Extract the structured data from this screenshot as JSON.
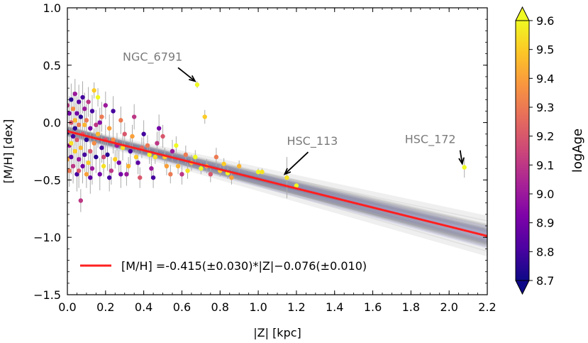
{
  "chart_data": {
    "type": "scatter",
    "xlabel": "|Z| [kpc]",
    "ylabel": "[M/H] [dex]",
    "xlim": [
      0.0,
      2.2
    ],
    "ylim": [
      -1.5,
      1.0
    ],
    "xticks": [
      0.0,
      0.2,
      0.4,
      0.6,
      0.8,
      1.0,
      1.2,
      1.4,
      1.6,
      1.8,
      2.0,
      2.2
    ],
    "xtick_labels": [
      "0.0",
      "0.2",
      "0.4",
      "0.6",
      "0.8",
      "1.0",
      "1.2",
      "1.4",
      "1.6",
      "1.8",
      "2.0",
      "2.2"
    ],
    "yticks": [
      -1.5,
      -1.0,
      -0.5,
      0.0,
      0.5,
      1.0
    ],
    "ytick_labels": [
      "−1.5",
      "−1.0",
      "−0.5",
      "0.0",
      "0.5",
      "1.0"
    ],
    "fit": {
      "slope": -0.415,
      "slope_err": 0.03,
      "intercept": -0.076,
      "intercept_err": 0.01,
      "color": "#ff2020",
      "legend_label": "[M/H] =-0.415(±0.030)*|Z|−0.076(±0.010)"
    },
    "colorbar": {
      "label": "logAge",
      "range": [
        8.7,
        9.6
      ],
      "ticks": [
        8.7,
        8.8,
        8.9,
        9.0,
        9.1,
        9.2,
        9.3,
        9.4,
        9.5,
        9.6
      ],
      "tick_labels": [
        "8.7",
        "8.8",
        "8.9",
        "9.0",
        "9.1",
        "9.2",
        "9.3",
        "9.4",
        "9.5",
        "9.6"
      ],
      "colormap": "plasma"
    },
    "annotations": [
      {
        "text": "NGC_6791",
        "x": 0.68,
        "y": 0.33
      },
      {
        "text": "HSC_113",
        "x": 1.15,
        "y": -0.48
      },
      {
        "text": "HSC_172",
        "x": 2.08,
        "y": -0.39
      }
    ],
    "points": [
      {
        "x": 0.68,
        "y": 0.33,
        "age": 9.6,
        "err": 0.03
      },
      {
        "x": 1.15,
        "y": -0.48,
        "age": 9.55,
        "err": 0.18
      },
      {
        "x": 1.2,
        "y": -0.55,
        "age": 9.6,
        "err": 0.03
      },
      {
        "x": 2.08,
        "y": -0.39,
        "age": 9.6,
        "err": 0.09
      },
      {
        "x": 0.72,
        "y": 0.05,
        "age": 9.5,
        "err": 0.06
      },
      {
        "x": 1.0,
        "y": -0.43,
        "age": 9.6,
        "err": 0.03
      },
      {
        "x": 1.02,
        "y": -0.43,
        "age": 9.55,
        "err": 0.03
      },
      {
        "x": 0.9,
        "y": -0.38,
        "age": 9.45,
        "err": 0.05
      },
      {
        "x": 0.86,
        "y": -0.48,
        "age": 9.4,
        "err": 0.06
      },
      {
        "x": 0.78,
        "y": -0.3,
        "age": 9.3,
        "err": 0.08
      },
      {
        "x": 0.8,
        "y": -0.42,
        "age": 9.5,
        "err": 0.05
      },
      {
        "x": 0.82,
        "y": -0.36,
        "age": 9.5,
        "err": 0.05
      },
      {
        "x": 0.75,
        "y": -0.45,
        "age": 9.2,
        "err": 0.07
      },
      {
        "x": 0.7,
        "y": -0.4,
        "age": 9.6,
        "err": 0.05
      },
      {
        "x": 0.65,
        "y": -0.35,
        "age": 9.45,
        "err": 0.07
      },
      {
        "x": 0.62,
        "y": -0.28,
        "age": 9.3,
        "err": 0.08
      },
      {
        "x": 0.6,
        "y": -0.45,
        "age": 9.1,
        "err": 0.09
      },
      {
        "x": 0.55,
        "y": -0.25,
        "age": 9.0,
        "err": 0.1
      },
      {
        "x": 0.52,
        "y": -0.38,
        "age": 9.4,
        "err": 0.08
      },
      {
        "x": 0.5,
        "y": -0.12,
        "age": 9.2,
        "err": 0.1
      },
      {
        "x": 0.48,
        "y": -0.05,
        "age": 8.9,
        "err": 0.12
      },
      {
        "x": 0.46,
        "y": -0.3,
        "age": 9.55,
        "err": 0.06
      },
      {
        "x": 0.44,
        "y": -0.4,
        "age": 9.0,
        "err": 0.09
      },
      {
        "x": 0.42,
        "y": -0.2,
        "age": 9.3,
        "err": 0.09
      },
      {
        "x": 0.4,
        "y": -0.1,
        "age": 8.8,
        "err": 0.12
      },
      {
        "x": 0.38,
        "y": -0.48,
        "age": 9.2,
        "err": 0.09
      },
      {
        "x": 0.36,
        "y": -0.3,
        "age": 9.5,
        "err": 0.07
      },
      {
        "x": 0.35,
        "y": 0.05,
        "age": 9.1,
        "err": 0.11
      },
      {
        "x": 0.33,
        "y": -0.25,
        "age": 8.8,
        "err": 0.12
      },
      {
        "x": 0.32,
        "y": -0.38,
        "age": 9.45,
        "err": 0.08
      },
      {
        "x": 0.3,
        "y": -0.1,
        "age": 9.2,
        "err": 0.1
      },
      {
        "x": 0.28,
        "y": -0.45,
        "age": 8.9,
        "err": 0.12
      },
      {
        "x": 0.28,
        "y": 0.02,
        "age": 9.3,
        "err": 0.12
      },
      {
        "x": 0.26,
        "y": -0.2,
        "age": 9.0,
        "err": 0.11
      },
      {
        "x": 0.25,
        "y": -0.32,
        "age": 9.5,
        "err": 0.08
      },
      {
        "x": 0.24,
        "y": 0.1,
        "age": 8.8,
        "err": 0.13
      },
      {
        "x": 0.23,
        "y": -0.42,
        "age": 9.1,
        "err": 0.12
      },
      {
        "x": 0.22,
        "y": -0.05,
        "age": 9.4,
        "err": 0.12
      },
      {
        "x": 0.21,
        "y": -0.28,
        "age": 8.75,
        "err": 0.14
      },
      {
        "x": 0.2,
        "y": -0.15,
        "age": 9.2,
        "err": 0.13
      },
      {
        "x": 0.2,
        "y": 0.15,
        "age": 9.0,
        "err": 0.12
      },
      {
        "x": 0.19,
        "y": -0.38,
        "age": 9.55,
        "err": 0.09
      },
      {
        "x": 0.18,
        "y": -0.22,
        "age": 8.8,
        "err": 0.13
      },
      {
        "x": 0.18,
        "y": 0.05,
        "age": 9.3,
        "err": 0.13
      },
      {
        "x": 0.17,
        "y": -0.45,
        "age": 8.9,
        "err": 0.14
      },
      {
        "x": 0.16,
        "y": -0.1,
        "age": 9.45,
        "err": 0.12
      },
      {
        "x": 0.16,
        "y": 0.22,
        "age": 9.6,
        "err": 0.08
      },
      {
        "x": 0.15,
        "y": -0.3,
        "age": 8.75,
        "err": 0.14
      },
      {
        "x": 0.15,
        "y": -0.02,
        "age": 9.1,
        "err": 0.13
      },
      {
        "x": 0.14,
        "y": -0.18,
        "age": 9.35,
        "err": 0.13
      },
      {
        "x": 0.14,
        "y": 0.28,
        "age": 9.5,
        "err": 0.07
      },
      {
        "x": 0.13,
        "y": -0.4,
        "age": 9.0,
        "err": 0.14
      },
      {
        "x": 0.13,
        "y": 0.1,
        "age": 8.8,
        "err": 0.14
      },
      {
        "x": 0.12,
        "y": -0.25,
        "age": 9.2,
        "err": 0.14
      },
      {
        "x": 0.12,
        "y": -0.05,
        "age": 8.9,
        "err": 0.13
      },
      {
        "x": 0.11,
        "y": -0.35,
        "age": 9.5,
        "err": 0.12
      },
      {
        "x": 0.11,
        "y": 0.18,
        "age": 9.1,
        "err": 0.13
      },
      {
        "x": 0.1,
        "y": -0.15,
        "age": 8.75,
        "err": 0.14
      },
      {
        "x": 0.1,
        "y": 0.02,
        "age": 9.3,
        "err": 0.14
      },
      {
        "x": 0.1,
        "y": -0.45,
        "age": 9.4,
        "err": 0.12
      },
      {
        "x": 0.09,
        "y": -0.28,
        "age": 8.8,
        "err": 0.15
      },
      {
        "x": 0.09,
        "y": 0.12,
        "age": 9.0,
        "err": 0.14
      },
      {
        "x": 0.08,
        "y": -0.1,
        "age": 9.2,
        "err": 0.15
      },
      {
        "x": 0.08,
        "y": -0.38,
        "age": 8.9,
        "err": 0.15
      },
      {
        "x": 0.08,
        "y": 0.22,
        "age": 8.8,
        "err": 0.14
      },
      {
        "x": 0.07,
        "y": -0.22,
        "age": 9.45,
        "err": 0.14
      },
      {
        "x": 0.07,
        "y": -0.68,
        "age": 9.1,
        "err": 0.1
      },
      {
        "x": 0.07,
        "y": 0.05,
        "age": 8.75,
        "err": 0.15
      },
      {
        "x": 0.06,
        "y": -0.32,
        "age": 9.0,
        "err": 0.15
      },
      {
        "x": 0.06,
        "y": -0.02,
        "age": 9.3,
        "err": 0.15
      },
      {
        "x": 0.06,
        "y": 0.18,
        "age": 8.85,
        "err": 0.15
      },
      {
        "x": 0.05,
        "y": -0.45,
        "age": 8.8,
        "err": 0.15
      },
      {
        "x": 0.05,
        "y": -0.15,
        "age": 9.2,
        "err": 0.15
      },
      {
        "x": 0.05,
        "y": 0.08,
        "age": 8.9,
        "err": 0.15
      },
      {
        "x": 0.04,
        "y": -0.25,
        "age": 9.5,
        "err": 0.14
      },
      {
        "x": 0.04,
        "y": -0.05,
        "age": 8.75,
        "err": 0.15
      },
      {
        "x": 0.04,
        "y": 0.25,
        "age": 9.0,
        "err": 0.13
      },
      {
        "x": 0.03,
        "y": -0.38,
        "age": 9.1,
        "err": 0.15
      },
      {
        "x": 0.03,
        "y": -0.12,
        "age": 8.8,
        "err": 0.15
      },
      {
        "x": 0.03,
        "y": 0.12,
        "age": 9.35,
        "err": 0.15
      },
      {
        "x": 0.02,
        "y": -0.3,
        "age": 8.85,
        "err": 0.15
      },
      {
        "x": 0.02,
        "y": 0.0,
        "age": 9.2,
        "err": 0.15
      },
      {
        "x": 0.02,
        "y": 0.2,
        "age": 8.75,
        "err": 0.14
      },
      {
        "x": 0.01,
        "y": -0.2,
        "age": 9.0,
        "err": 0.15
      },
      {
        "x": 0.01,
        "y": -0.42,
        "age": 9.3,
        "err": 0.14
      },
      {
        "x": 0.01,
        "y": 0.08,
        "age": 8.9,
        "err": 0.15
      },
      {
        "x": 0.0,
        "y": -0.08,
        "age": 8.8,
        "err": 0.15
      },
      {
        "x": 0.0,
        "y": 0.15,
        "age": 9.1,
        "err": 0.14
      },
      {
        "x": 0.0,
        "y": -0.32,
        "age": 9.4,
        "err": 0.14
      },
      {
        "x": 0.02,
        "y": -0.18,
        "age": 9.55,
        "err": 0.14
      },
      {
        "x": 0.04,
        "y": 0.02,
        "age": 9.45,
        "err": 0.15
      },
      {
        "x": 0.06,
        "y": -0.42,
        "age": 9.2,
        "err": 0.15
      },
      {
        "x": 0.09,
        "y": -0.02,
        "age": 9.45,
        "err": 0.14
      },
      {
        "x": 0.12,
        "y": -0.48,
        "age": 8.85,
        "err": 0.14
      },
      {
        "x": 0.17,
        "y": 0.0,
        "age": 8.95,
        "err": 0.13
      },
      {
        "x": 0.19,
        "y": -0.3,
        "age": 9.15,
        "err": 0.13
      },
      {
        "x": 0.22,
        "y": -0.48,
        "age": 8.8,
        "err": 0.12
      },
      {
        "x": 0.24,
        "y": -0.15,
        "age": 9.35,
        "err": 0.12
      },
      {
        "x": 0.27,
        "y": -0.35,
        "age": 8.9,
        "err": 0.11
      },
      {
        "x": 0.29,
        "y": -0.22,
        "age": 9.55,
        "err": 0.11
      },
      {
        "x": 0.31,
        "y": -0.45,
        "age": 9.0,
        "err": 0.1
      },
      {
        "x": 0.34,
        "y": -0.12,
        "age": 9.4,
        "err": 0.1
      },
      {
        "x": 0.37,
        "y": -0.35,
        "age": 8.85,
        "err": 0.1
      },
      {
        "x": 0.39,
        "y": -0.22,
        "age": 9.25,
        "err": 0.09
      },
      {
        "x": 0.43,
        "y": -0.28,
        "age": 9.6,
        "err": 0.08
      },
      {
        "x": 0.45,
        "y": -0.48,
        "age": 8.8,
        "err": 0.09
      },
      {
        "x": 0.47,
        "y": -0.18,
        "age": 9.1,
        "err": 0.1
      },
      {
        "x": 0.51,
        "y": -0.3,
        "age": 9.5,
        "err": 0.08
      },
      {
        "x": 0.54,
        "y": -0.45,
        "age": 9.3,
        "err": 0.08
      },
      {
        "x": 0.57,
        "y": -0.2,
        "age": 9.6,
        "err": 0.08
      },
      {
        "x": 0.58,
        "y": -0.38,
        "age": 9.45,
        "err": 0.07
      },
      {
        "x": 0.63,
        "y": -0.42,
        "age": 9.55,
        "err": 0.07
      },
      {
        "x": 0.67,
        "y": -0.3,
        "age": 9.6,
        "err": 0.06
      },
      {
        "x": 0.73,
        "y": -0.38,
        "age": 9.4,
        "err": 0.06
      },
      {
        "x": 0.84,
        "y": -0.44,
        "age": 9.6,
        "err": 0.05
      }
    ]
  }
}
